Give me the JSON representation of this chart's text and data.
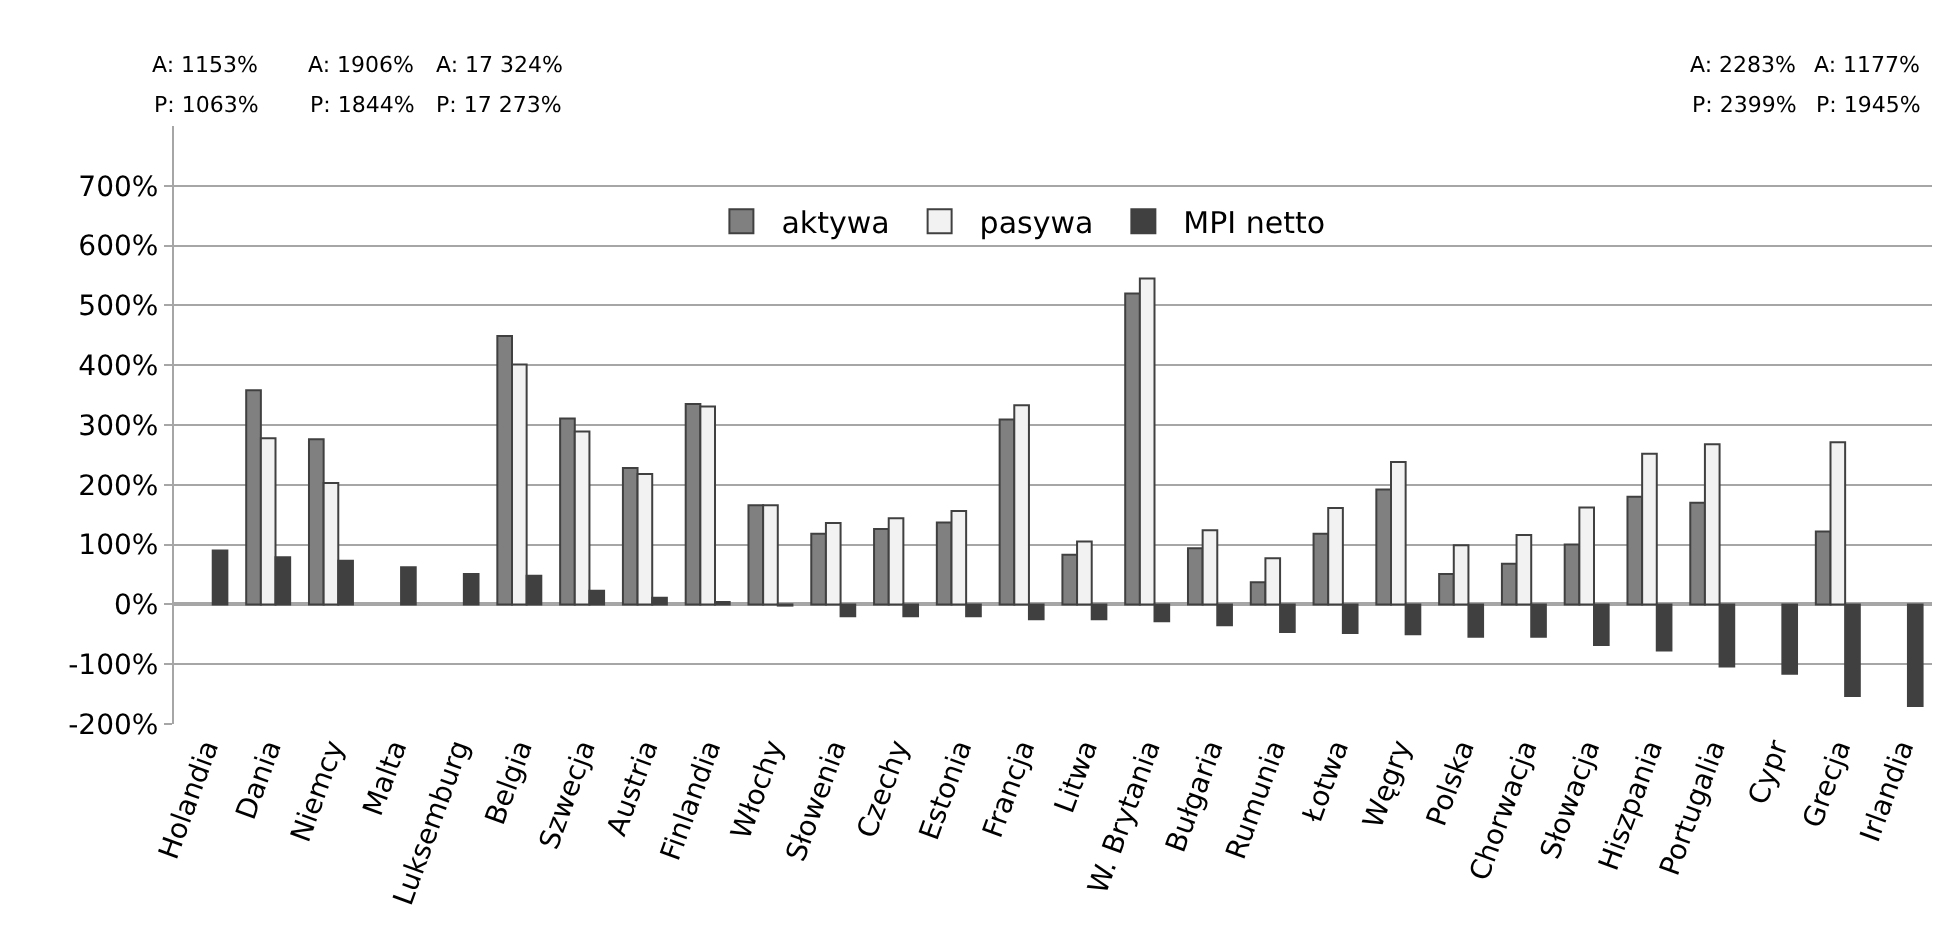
{
  "chart_data": {
    "type": "bar",
    "categories": [
      "Holandia",
      "Dania",
      "Niemcy",
      "Malta",
      "Luksemburg",
      "Belgia",
      "Szwecja",
      "Austria",
      "Finlandia",
      "Włochy",
      "Słowenia",
      "Czechy",
      "Estonia",
      "Francja",
      "Litwa",
      "W. Brytania",
      "Bułgaria",
      "Rumunia",
      "Łotwa",
      "Węgry",
      "Polska",
      "Chorwacja",
      "Słowacja",
      "Hiszpania",
      "Portugalia",
      "Cypr",
      "Grecja",
      "Irlandia"
    ],
    "series": [
      {
        "name": "aktywa",
        "color": "#808080",
        "values": [
          null,
          358,
          276,
          null,
          null,
          449,
          311,
          228,
          335,
          166,
          118,
          126,
          137,
          309,
          83,
          520,
          94,
          37,
          118,
          192,
          51,
          68,
          100,
          180,
          170,
          null,
          122,
          null
        ],
        "value_labels": [
          "A: 1153%",
          null,
          null,
          "A: 1906%",
          "A: 17 324%",
          null,
          null,
          null,
          null,
          null,
          null,
          null,
          null,
          null,
          null,
          null,
          null,
          null,
          null,
          null,
          null,
          null,
          null,
          null,
          null,
          "A: 2283%",
          null,
          "A: 1177%"
        ]
      },
      {
        "name": "pasywa",
        "color": "#f2f2f2",
        "values": [
          null,
          278,
          203,
          null,
          null,
          401,
          289,
          218,
          331,
          166,
          136,
          144,
          156,
          333,
          105,
          545,
          124,
          77,
          161,
          238,
          99,
          116,
          162,
          252,
          268,
          null,
          271,
          null
        ],
        "value_labels": [
          "P: 1063%",
          null,
          null,
          "P: 1844%",
          "P: 17 273%",
          null,
          null,
          null,
          null,
          null,
          null,
          null,
          null,
          null,
          null,
          null,
          null,
          null,
          null,
          null,
          null,
          null,
          null,
          null,
          null,
          "P: 2399%",
          null,
          "P: 1945%"
        ]
      },
      {
        "name": "MPI netto",
        "color": "#404040",
        "values": [
          90,
          79,
          73,
          62,
          51,
          48,
          23,
          11,
          4,
          -2,
          -20,
          -20,
          -20,
          -25,
          -25,
          -28,
          -35,
          -46,
          -48,
          -50,
          -54,
          -54,
          -68,
          -77,
          -104,
          -116,
          -153,
          -170
        ]
      }
    ],
    "ylim": [
      -200,
      800
    ],
    "yticks": [
      {
        "value": -200,
        "label": "-200%"
      },
      {
        "value": -100,
        "label": "-100%"
      },
      {
        "value": 0,
        "label": "0%"
      },
      {
        "value": 100,
        "label": "100%"
      },
      {
        "value": 200,
        "label": "200%"
      },
      {
        "value": 300,
        "label": "300%"
      },
      {
        "value": 400,
        "label": "400%"
      },
      {
        "value": 500,
        "label": "500%"
      },
      {
        "value": 600,
        "label": "600%"
      },
      {
        "value": 700,
        "label": "700%"
      }
    ],
    "grid": "y",
    "legend": "top"
  }
}
